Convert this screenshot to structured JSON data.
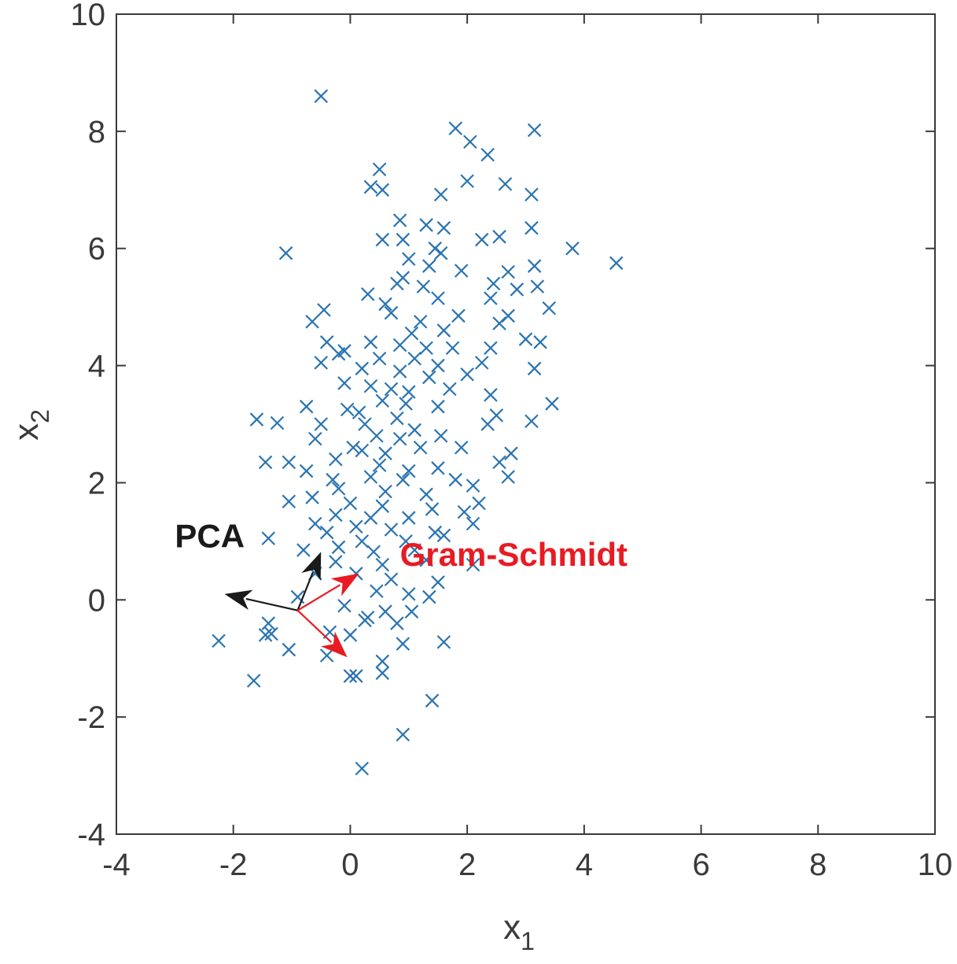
{
  "chart_data": {
    "type": "scatter",
    "title": "",
    "xlabel": {
      "base": "x",
      "sub": "1"
    },
    "ylabel": {
      "base": "x",
      "sub": "2"
    },
    "xlim": [
      -4,
      10
    ],
    "ylim": [
      -4,
      10
    ],
    "xticks": [
      "-4",
      "-2",
      "0",
      "2",
      "4",
      "6",
      "8",
      "10"
    ],
    "yticks": [
      "-4",
      "-2",
      "0",
      "2",
      "4",
      "6",
      "8",
      "10"
    ],
    "grid": false,
    "marker": "x",
    "marker_color": "#2a74b0",
    "series": [
      {
        "points": [
          [
            -0.5,
            8.6
          ],
          [
            1.8,
            8.05
          ],
          [
            3.15,
            8.02
          ],
          [
            2.05,
            7.82
          ],
          [
            2.35,
            7.6
          ],
          [
            0.5,
            7.35
          ],
          [
            0.35,
            7.05
          ],
          [
            0.55,
            7.0
          ],
          [
            2.0,
            7.15
          ],
          [
            2.65,
            7.1
          ],
          [
            3.1,
            6.92
          ],
          [
            1.55,
            6.92
          ],
          [
            0.85,
            6.48
          ],
          [
            1.3,
            6.4
          ],
          [
            1.6,
            6.35
          ],
          [
            3.1,
            6.35
          ],
          [
            0.55,
            6.15
          ],
          [
            0.9,
            6.15
          ],
          [
            2.25,
            6.15
          ],
          [
            2.55,
            6.2
          ],
          [
            -1.1,
            5.92
          ],
          [
            1.45,
            6.0
          ],
          [
            1.55,
            5.92
          ],
          [
            3.8,
            6.0
          ],
          [
            4.55,
            5.75
          ],
          [
            1.0,
            5.82
          ],
          [
            1.35,
            5.7
          ],
          [
            1.9,
            5.62
          ],
          [
            3.15,
            5.7
          ],
          [
            2.7,
            5.6
          ],
          [
            0.9,
            5.5
          ],
          [
            1.25,
            5.35
          ],
          [
            2.45,
            5.4
          ],
          [
            3.2,
            5.35
          ],
          [
            0.8,
            5.4
          ],
          [
            1.5,
            5.15
          ],
          [
            0.3,
            5.22
          ],
          [
            0.6,
            5.05
          ],
          [
            2.85,
            5.3
          ],
          [
            2.4,
            5.15
          ],
          [
            -0.45,
            4.95
          ],
          [
            -0.65,
            4.75
          ],
          [
            0.7,
            4.9
          ],
          [
            1.2,
            4.75
          ],
          [
            1.85,
            4.85
          ],
          [
            2.7,
            4.85
          ],
          [
            3.4,
            4.98
          ],
          [
            2.55,
            4.72
          ],
          [
            1.05,
            4.55
          ],
          [
            1.6,
            4.6
          ],
          [
            -0.4,
            4.4
          ],
          [
            0.35,
            4.4
          ],
          [
            0.85,
            4.35
          ],
          [
            1.3,
            4.3
          ],
          [
            1.75,
            4.3
          ],
          [
            2.4,
            4.3
          ],
          [
            3.0,
            4.45
          ],
          [
            3.25,
            4.4
          ],
          [
            -0.1,
            4.25
          ],
          [
            -0.2,
            4.2
          ],
          [
            0.5,
            4.12
          ],
          [
            1.1,
            4.12
          ],
          [
            1.5,
            4.0
          ],
          [
            2.25,
            4.05
          ],
          [
            -0.5,
            4.05
          ],
          [
            0.2,
            3.95
          ],
          [
            0.85,
            3.9
          ],
          [
            1.35,
            3.8
          ],
          [
            2.0,
            3.85
          ],
          [
            3.15,
            3.95
          ],
          [
            -0.1,
            3.7
          ],
          [
            0.35,
            3.65
          ],
          [
            0.7,
            3.6
          ],
          [
            1.0,
            3.55
          ],
          [
            1.7,
            3.6
          ],
          [
            2.4,
            3.5
          ],
          [
            0.55,
            3.4
          ],
          [
            0.95,
            3.35
          ],
          [
            1.5,
            3.3
          ],
          [
            0.15,
            3.2
          ],
          [
            -0.75,
            3.3
          ],
          [
            -0.05,
            3.25
          ],
          [
            0.8,
            3.1
          ],
          [
            2.5,
            3.15
          ],
          [
            3.45,
            3.35
          ],
          [
            -1.6,
            3.08
          ],
          [
            -1.25,
            3.02
          ],
          [
            -0.5,
            3.0
          ],
          [
            0.25,
            3.0
          ],
          [
            1.1,
            2.9
          ],
          [
            2.35,
            3.0
          ],
          [
            3.1,
            3.05
          ],
          [
            0.45,
            2.8
          ],
          [
            0.85,
            2.75
          ],
          [
            1.55,
            2.8
          ],
          [
            -0.6,
            2.75
          ],
          [
            0.05,
            2.6
          ],
          [
            0.2,
            2.55
          ],
          [
            0.6,
            2.5
          ],
          [
            1.2,
            2.6
          ],
          [
            1.9,
            2.6
          ],
          [
            2.75,
            2.5
          ],
          [
            -1.45,
            2.35
          ],
          [
            -1.05,
            2.35
          ],
          [
            -0.25,
            2.4
          ],
          [
            0.5,
            2.3
          ],
          [
            1.0,
            2.2
          ],
          [
            1.5,
            2.25
          ],
          [
            2.55,
            2.35
          ],
          [
            -0.75,
            2.2
          ],
          [
            -0.3,
            2.05
          ],
          [
            0.35,
            2.1
          ],
          [
            0.9,
            2.05
          ],
          [
            1.8,
            2.05
          ],
          [
            2.1,
            1.95
          ],
          [
            2.7,
            2.1
          ],
          [
            -0.2,
            1.9
          ],
          [
            0.6,
            1.85
          ],
          [
            1.3,
            1.8
          ],
          [
            -0.65,
            1.75
          ],
          [
            0.0,
            1.65
          ],
          [
            0.55,
            1.6
          ],
          [
            1.4,
            1.55
          ],
          [
            -1.05,
            1.68
          ],
          [
            2.2,
            1.65
          ],
          [
            -0.25,
            1.45
          ],
          [
            0.35,
            1.4
          ],
          [
            1.0,
            1.4
          ],
          [
            1.95,
            1.5
          ],
          [
            2.1,
            1.3
          ],
          [
            -0.6,
            1.3
          ],
          [
            0.1,
            1.25
          ],
          [
            0.7,
            1.2
          ],
          [
            1.45,
            1.15
          ],
          [
            -1.4,
            1.05
          ],
          [
            -0.4,
            1.15
          ],
          [
            0.2,
            1.0
          ],
          [
            0.95,
            1.0
          ],
          [
            1.6,
            1.1
          ],
          [
            -0.8,
            0.85
          ],
          [
            -0.2,
            0.9
          ],
          [
            0.4,
            0.82
          ],
          [
            1.1,
            0.85
          ],
          [
            -0.25,
            0.65
          ],
          [
            0.55,
            0.6
          ],
          [
            1.3,
            0.68
          ],
          [
            2.1,
            0.6
          ],
          [
            -0.6,
            0.45
          ],
          [
            0.1,
            0.45
          ],
          [
            0.7,
            0.35
          ],
          [
            1.5,
            0.3
          ],
          [
            0.45,
            0.15
          ],
          [
            1.0,
            0.1
          ],
          [
            1.35,
            0.05
          ],
          [
            -0.9,
            0.05
          ],
          [
            -0.1,
            -0.1
          ],
          [
            0.6,
            -0.2
          ],
          [
            1.05,
            -0.2
          ],
          [
            0.3,
            -0.3
          ],
          [
            0.8,
            -0.4
          ],
          [
            0.25,
            -0.35
          ],
          [
            -0.35,
            -0.55
          ],
          [
            -1.4,
            -0.4
          ],
          [
            -1.45,
            -0.6
          ],
          [
            -1.35,
            -0.58
          ],
          [
            0.0,
            -0.6
          ],
          [
            0.9,
            -0.75
          ],
          [
            1.6,
            -0.72
          ],
          [
            -2.25,
            -0.7
          ],
          [
            -1.05,
            -0.85
          ],
          [
            -0.4,
            -0.95
          ],
          [
            0.55,
            -1.05
          ],
          [
            0.55,
            -1.25
          ],
          [
            0.1,
            -1.3
          ],
          [
            0.0,
            -1.3
          ],
          [
            -1.65,
            -1.38
          ],
          [
            1.4,
            -1.72
          ],
          [
            0.9,
            -2.3
          ],
          [
            0.2,
            -2.88
          ]
        ]
      }
    ],
    "annotations": [
      {
        "text": "PCA",
        "color": "#1a1a1a",
        "anchor": [
          -3.0,
          0.9
        ]
      },
      {
        "text": "Gram-Schmidt",
        "color": "#e81b23",
        "anchor": [
          0.85,
          0.58
        ]
      }
    ],
    "vectors": [
      {
        "group": "PCA",
        "color": "#1a1a1a",
        "from": [
          -0.9,
          -0.18
        ],
        "to": [
          -2.15,
          0.1
        ]
      },
      {
        "group": "PCA",
        "color": "#1a1a1a",
        "from": [
          -0.9,
          -0.18
        ],
        "to": [
          -0.5,
          0.82
        ]
      },
      {
        "group": "Gram-Schmidt",
        "color": "#e81b23",
        "from": [
          -0.9,
          -0.18
        ],
        "to": [
          0.15,
          0.45
        ]
      },
      {
        "group": "Gram-Schmidt",
        "color": "#e81b23",
        "from": [
          -0.9,
          -0.18
        ],
        "to": [
          -0.05,
          -0.98
        ]
      }
    ]
  }
}
